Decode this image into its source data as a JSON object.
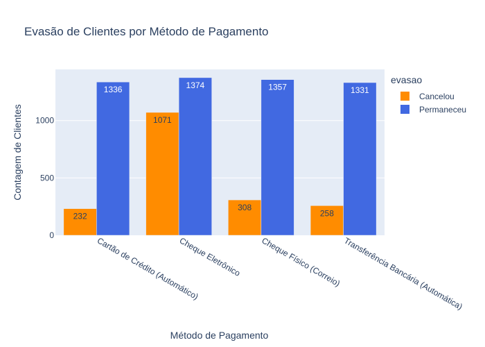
{
  "chart_data": {
    "type": "bar",
    "title": "Evasão de Clientes por Método de Pagamento",
    "xlabel": "Método de Pagamento",
    "ylabel": "Contagem de Clientes",
    "categories": [
      "Cartão de Crédito (Automático)",
      "Cheque Eletrônico",
      "Cheque Físico (Correio)",
      "Transferência Bancária (Automática)"
    ],
    "series": [
      {
        "name": "Cancelou",
        "values": [
          232,
          1071,
          308,
          258
        ],
        "color": "#FF8C00",
        "label_color": "#2a3f5f"
      },
      {
        "name": "Permaneceu",
        "values": [
          1336,
          1374,
          1357,
          1331
        ],
        "color": "#4169E1",
        "label_color": "#ffffff"
      }
    ],
    "ylim": [
      0,
      1446
    ],
    "yticks": [
      0,
      500,
      1000
    ],
    "grid": true,
    "legend": {
      "title": "evasao",
      "placement": "top-right"
    }
  }
}
